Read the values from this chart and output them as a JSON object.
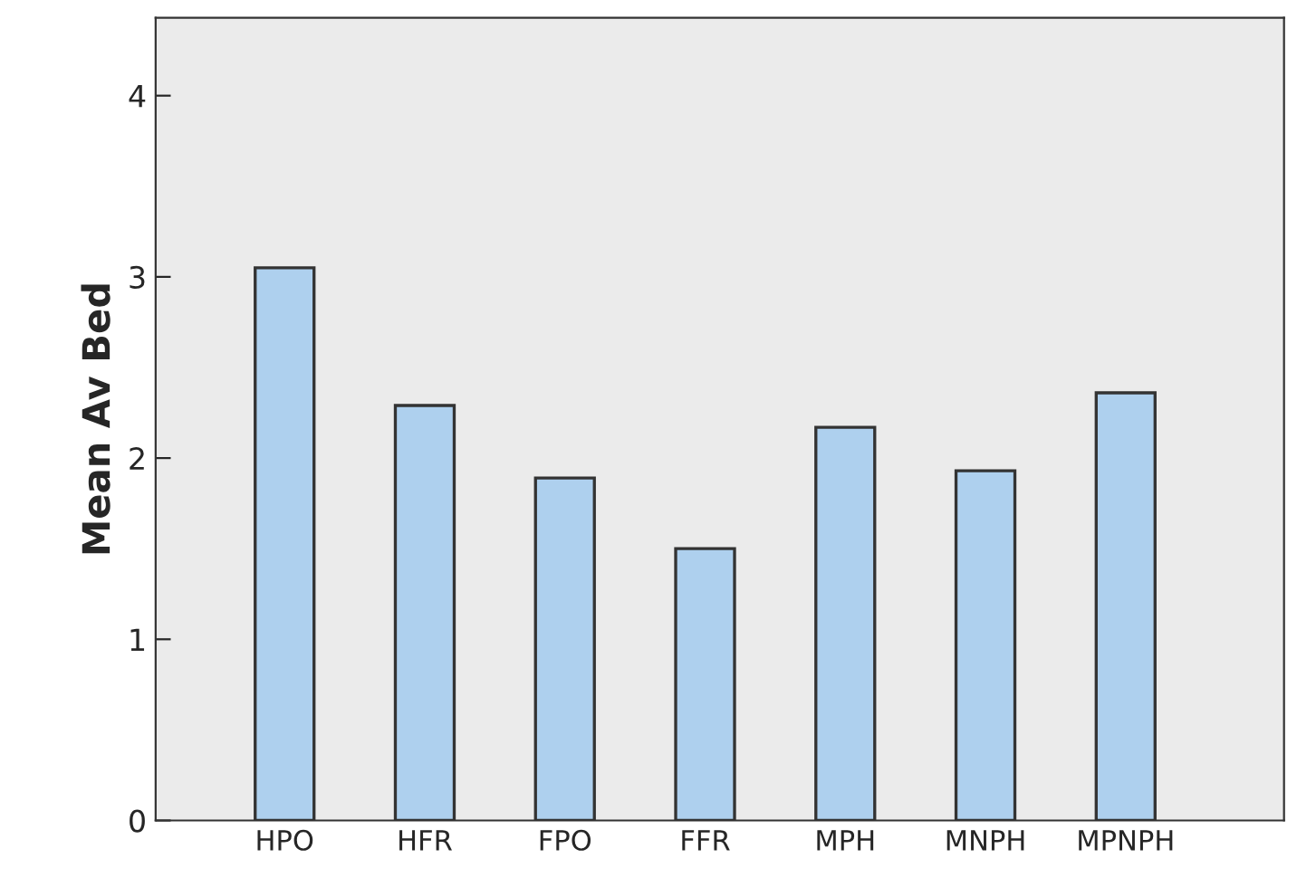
{
  "chart_data": {
    "type": "bar",
    "ylabel": "Mean Av Bed",
    "categories": [
      "HPO",
      "HFR",
      "FPO",
      "FFR",
      "MPH",
      "MNPH",
      "MPNPH"
    ],
    "series": [
      {
        "color": "#aed0ee",
        "values": [
          3.05,
          2.29,
          1.89,
          1.5,
          2.17,
          1.93,
          2.36
        ]
      }
    ],
    "ylim": [
      0,
      4.43
    ],
    "yticks": [
      0,
      1,
      2,
      3,
      4
    ],
    "grid": false,
    "legend": false
  }
}
